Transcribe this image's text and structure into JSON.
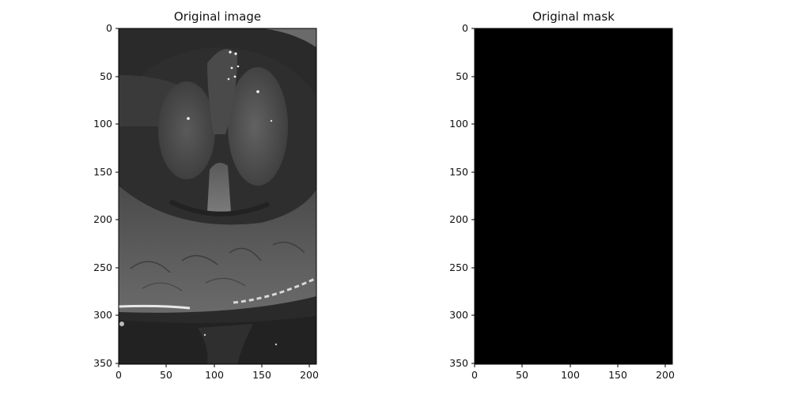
{
  "figure": {
    "panels": [
      {
        "title": "Original image",
        "content": "grayscale laryngoscopy image",
        "x_ticks": [
          "0",
          "50",
          "100",
          "150",
          "200"
        ],
        "y_ticks": [
          "0",
          "50",
          "100",
          "150",
          "200",
          "250",
          "300",
          "350"
        ]
      },
      {
        "title": "Original mask",
        "content": "all-black mask",
        "x_ticks": [
          "0",
          "50",
          "100",
          "150",
          "200"
        ],
        "y_ticks": [
          "0",
          "50",
          "100",
          "150",
          "200",
          "250",
          "300",
          "350"
        ]
      }
    ]
  },
  "colors": {
    "mask_fill": "#000000",
    "image_dark": "#1a1a1a",
    "image_tissue": "#555555",
    "glint": "#ffffff"
  }
}
